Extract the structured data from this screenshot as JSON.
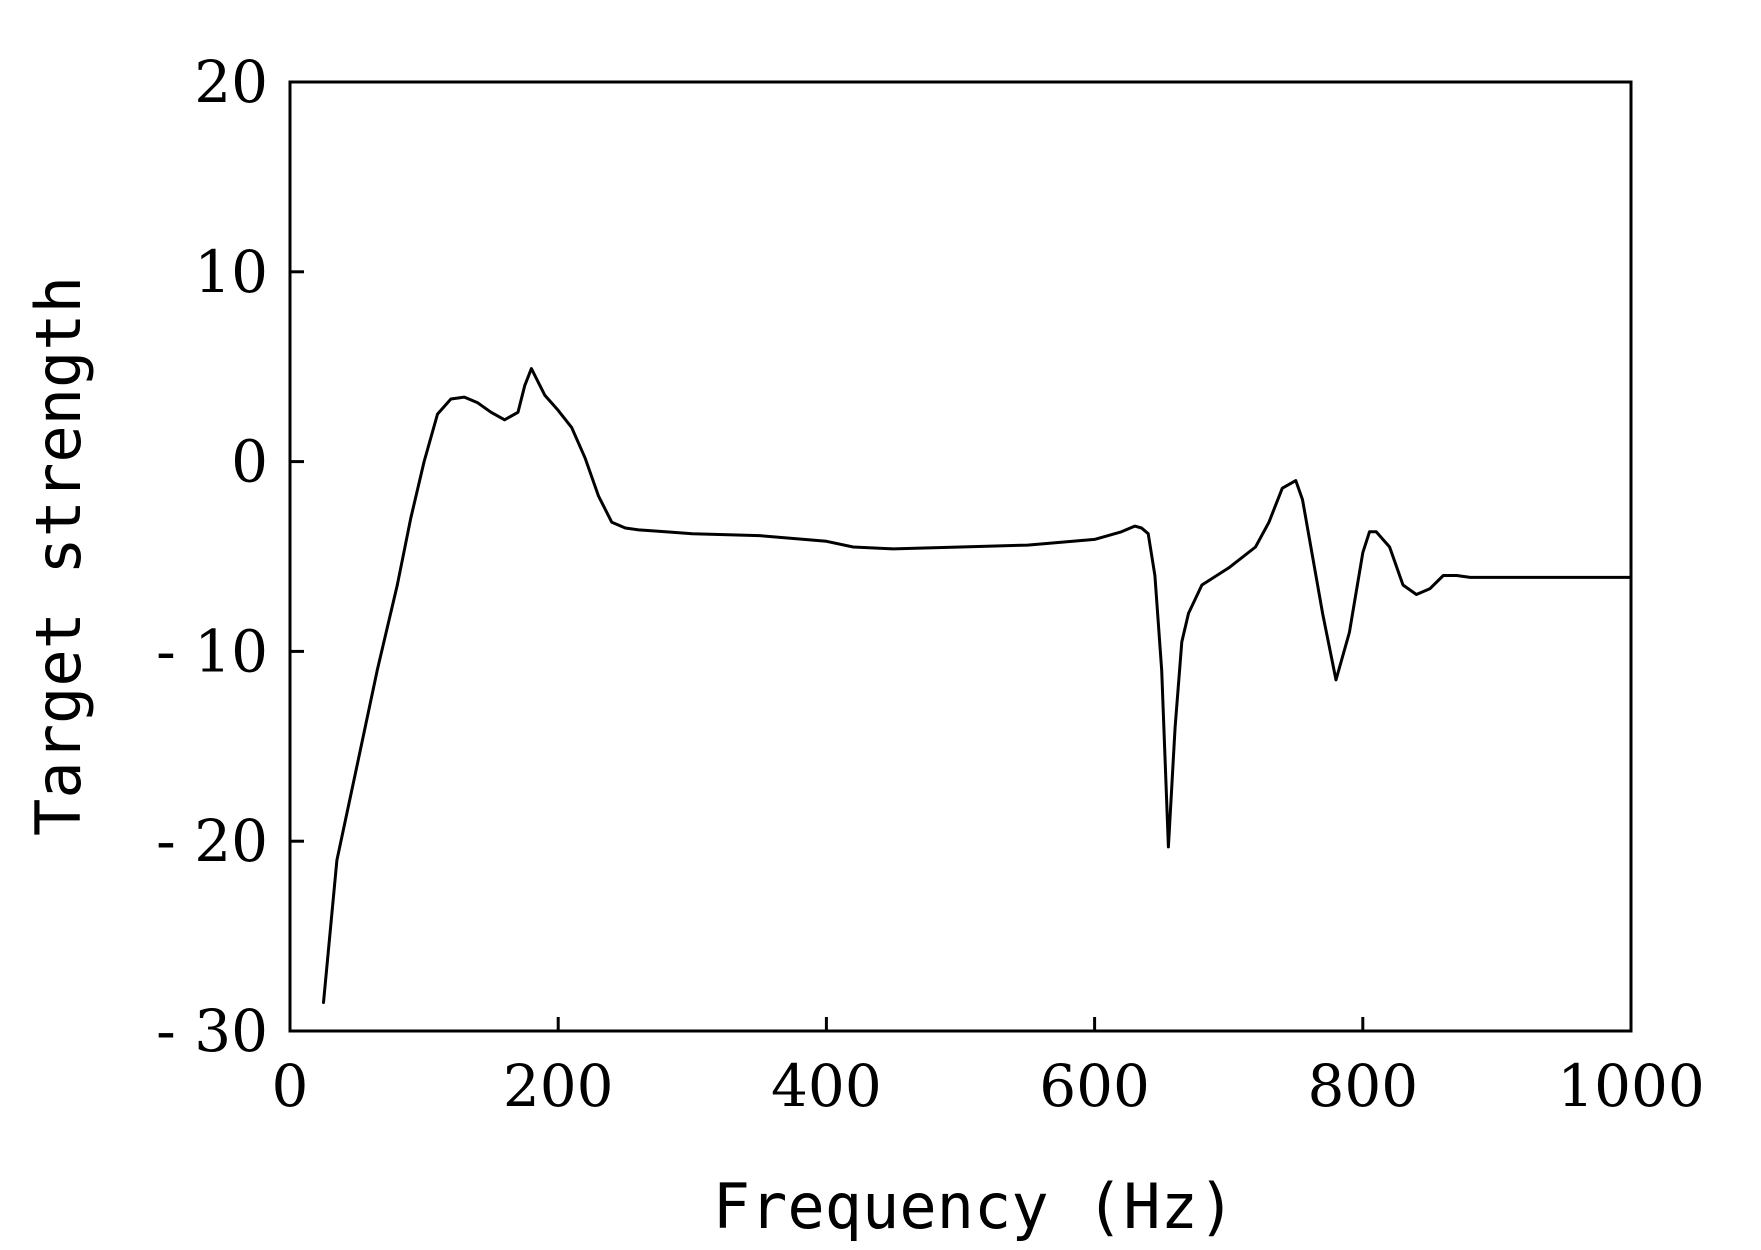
{
  "chart_data": {
    "type": "line",
    "title": "",
    "xlabel": "Frequency (Hz)",
    "ylabel": "Target strength",
    "xlim": [
      0,
      1000
    ],
    "ylim": [
      -30,
      20
    ],
    "xticks": [
      0,
      200,
      400,
      600,
      800,
      1000
    ],
    "xtick_labels": [
      "0",
      "200",
      "400",
      "600",
      "800",
      "1000"
    ],
    "yticks": [
      20,
      10,
      0,
      -10,
      -20,
      -30
    ],
    "ytick_labels": [
      "20",
      "10",
      "0",
      "- 10",
      "- 20",
      "- 30"
    ],
    "grid": false,
    "legend": "none",
    "colors": {
      "line": "#000000",
      "axes": "#000000",
      "background": "#ffffff"
    },
    "series": [
      {
        "x": [
          25,
          35,
          50,
          65,
          80,
          90,
          100,
          110,
          120,
          130,
          140,
          150,
          160,
          170,
          175,
          180,
          185,
          190,
          200,
          210,
          220,
          230,
          240,
          250,
          260,
          280,
          300,
          350,
          400,
          420,
          450,
          500,
          550,
          600,
          620,
          630,
          635,
          640,
          645,
          650,
          655,
          660,
          665,
          670,
          680,
          700,
          720,
          730,
          740,
          750,
          755,
          760,
          770,
          780,
          790,
          800,
          805,
          810,
          820,
          830,
          840,
          850,
          860,
          870,
          880,
          900,
          950,
          1000
        ],
        "y": [
          -28.5,
          -21,
          -16,
          -11,
          -6.5,
          -3,
          0,
          2.5,
          3.3,
          3.4,
          3.1,
          2.6,
          2.2,
          2.6,
          4.0,
          4.9,
          4.2,
          3.5,
          2.7,
          1.8,
          0.2,
          -1.8,
          -3.2,
          -3.5,
          -3.6,
          -3.7,
          -3.8,
          -3.9,
          -4.2,
          -4.5,
          -4.6,
          -4.5,
          -4.4,
          -4.1,
          -3.7,
          -3.4,
          -3.5,
          -3.8,
          -6,
          -11,
          -20.3,
          -14,
          -9.5,
          -8,
          -6.5,
          -5.6,
          -4.5,
          -3.2,
          -1.4,
          -1.0,
          -2,
          -4,
          -8,
          -11.5,
          -9,
          -4.8,
          -3.7,
          -3.7,
          -4.5,
          -6.5,
          -7,
          -6.7,
          -6.0,
          -6.0,
          -6.1,
          -6.1,
          -6.1,
          -6.1
        ]
      }
    ]
  }
}
